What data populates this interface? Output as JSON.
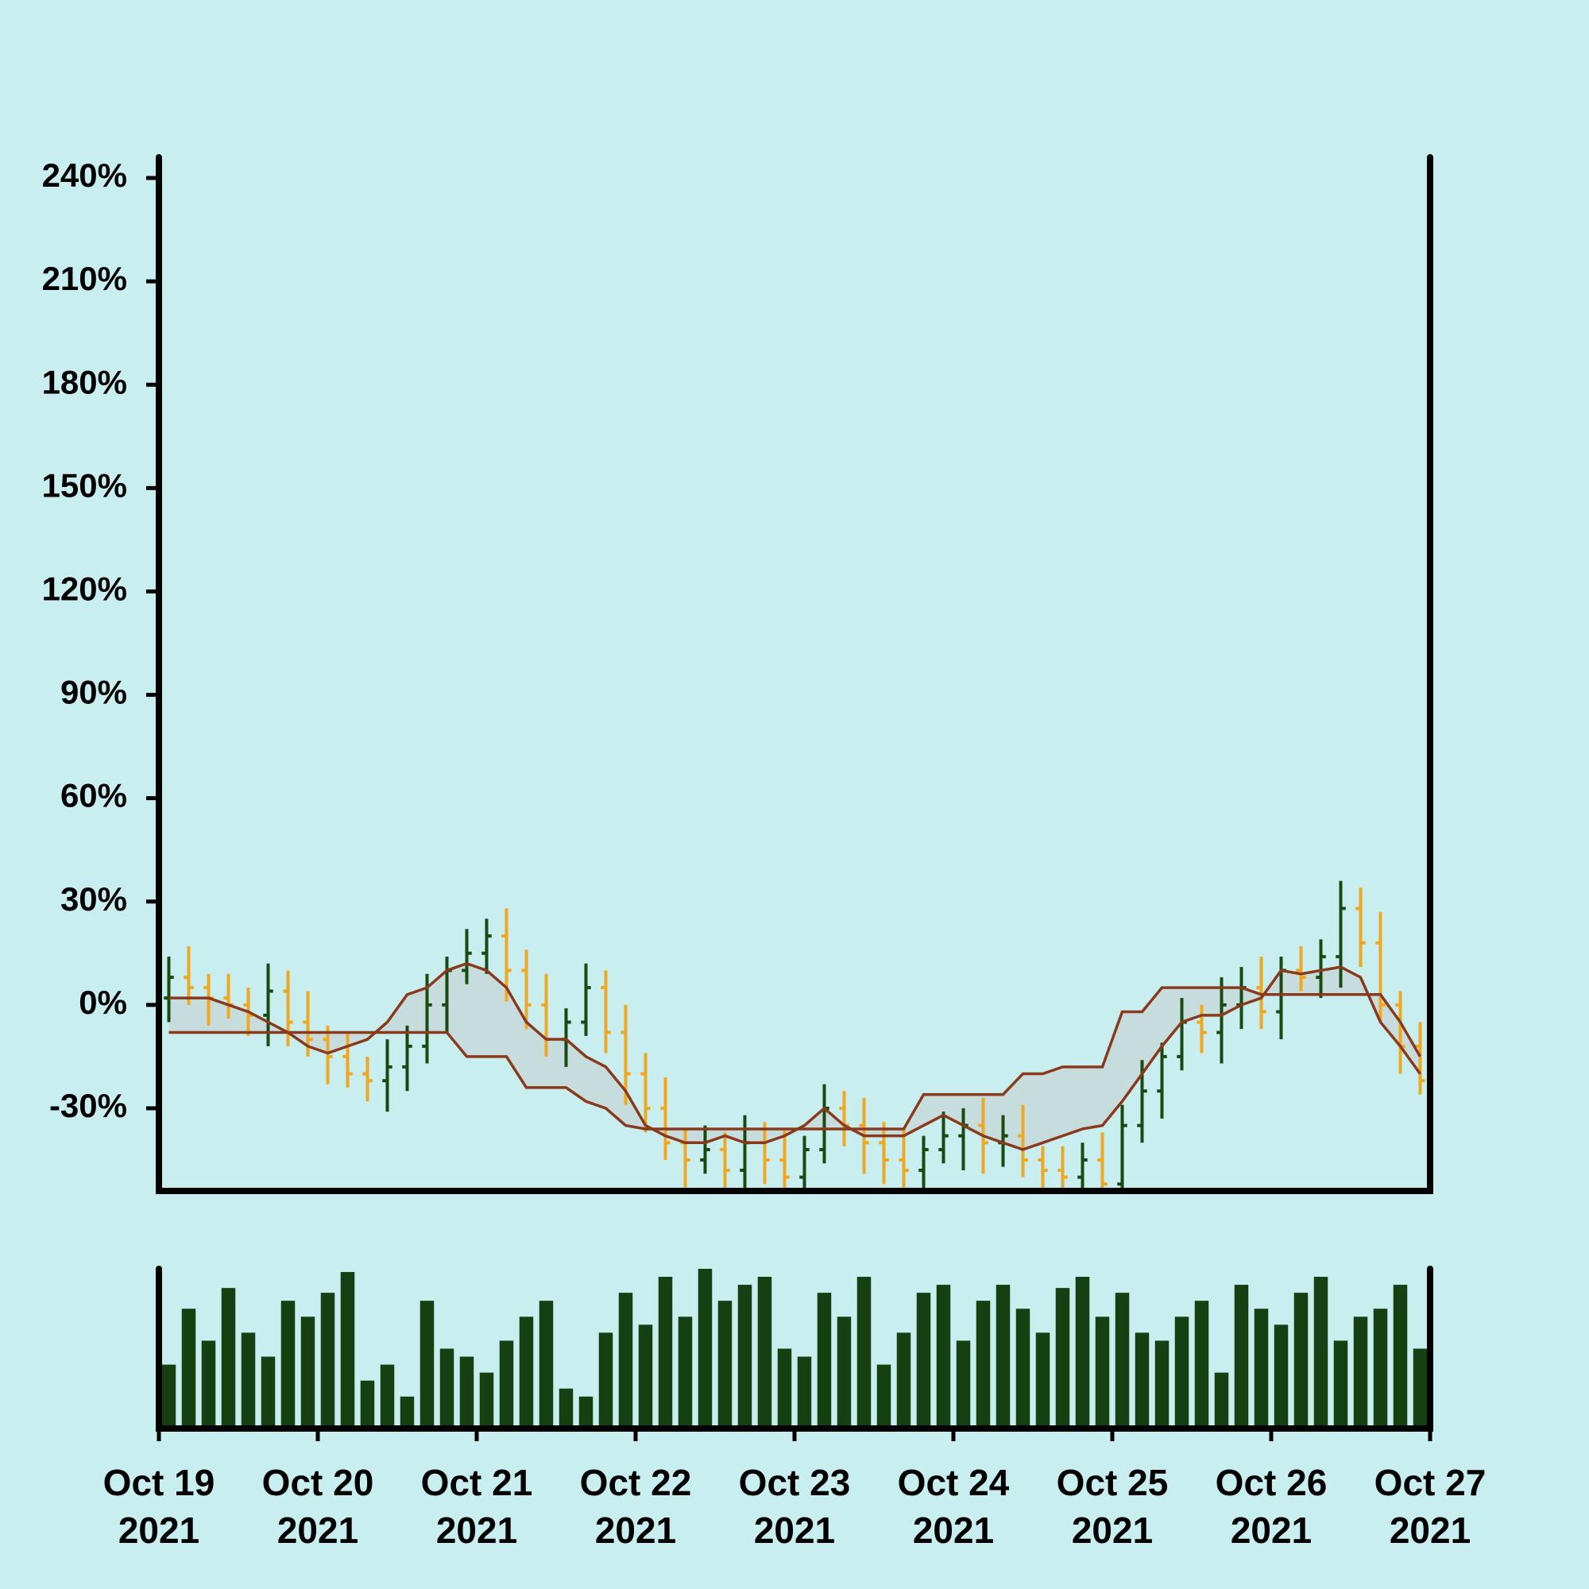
{
  "chart_data": [
    {
      "type": "ohlc",
      "open": [
        2,
        8,
        5,
        2,
        0,
        -3,
        4,
        -5,
        -10,
        -15,
        -20,
        -22,
        -18,
        -12,
        0,
        10,
        15,
        20,
        10,
        0,
        -10,
        -5,
        5,
        -8,
        -20,
        -30,
        -40,
        -45,
        -42,
        -48,
        -40,
        -45,
        -50,
        -42,
        -30,
        -35,
        -40,
        -45,
        -48,
        -42,
        -38,
        -35,
        -40,
        -38,
        -45,
        -48,
        -50,
        -45,
        -52,
        -35,
        -25,
        -15,
        -5,
        -8,
        0,
        5,
        -2,
        10,
        8,
        14,
        28,
        18,
        0,
        -12
      ],
      "high": [
        14,
        17,
        9,
        9,
        5,
        12,
        10,
        4,
        -6,
        -8,
        -15,
        -10,
        -6,
        9,
        14,
        22,
        25,
        28,
        16,
        9,
        -1,
        12,
        10,
        0,
        -14,
        -21,
        -36,
        -35,
        -37,
        -32,
        -34,
        -36,
        -38,
        -23,
        -25,
        -27,
        -34,
        -36,
        -38,
        -31,
        -30,
        -27,
        -32,
        -29,
        -41,
        -41,
        -40,
        -37,
        -29,
        -16,
        -11,
        2,
        0,
        8,
        11,
        14,
        14,
        17,
        19,
        36,
        34,
        27,
        4,
        -5
      ],
      "low": [
        -5,
        0,
        -6,
        -4,
        -9,
        -12,
        -12,
        -15,
        -23,
        -24,
        -28,
        -31,
        -25,
        -17,
        -8,
        6,
        9,
        1,
        -7,
        -15,
        -18,
        -9,
        -14,
        -29,
        -37,
        -45,
        -53,
        -49,
        -54,
        -57,
        -52,
        -55,
        -58,
        -46,
        -41,
        -49,
        -52,
        -53,
        -56,
        -46,
        -48,
        -49,
        -47,
        -50,
        -56,
        -54,
        -56,
        -61,
        -59,
        -40,
        -33,
        -19,
        -14,
        -17,
        -7,
        -7,
        -10,
        4,
        2,
        5,
        11,
        -5,
        -20,
        -26
      ],
      "close": [
        8,
        5,
        2,
        0,
        -3,
        4,
        -5,
        -10,
        -15,
        -20,
        -22,
        -18,
        -12,
        0,
        10,
        15,
        20,
        10,
        0,
        -10,
        -5,
        5,
        -8,
        -20,
        -30,
        -40,
        -45,
        -42,
        -48,
        -40,
        -45,
        -50,
        -42,
        -30,
        -35,
        -40,
        -45,
        -48,
        -42,
        -38,
        -35,
        -40,
        -38,
        -45,
        -48,
        -50,
        -45,
        -52,
        -35,
        -25,
        -15,
        -5,
        -8,
        0,
        5,
        -2,
        10,
        8,
        14,
        28,
        18,
        0,
        -12,
        -22
      ],
      "up_color": "#184a12",
      "down_color": "#f0a820",
      "lines": [
        {
          "color": "#8a3a1c",
          "values": [
            2,
            2,
            2,
            0,
            -2,
            -5,
            -8,
            -12,
            -14,
            -12,
            -10,
            -5,
            3,
            5,
            10,
            12,
            10,
            5,
            -5,
            -10,
            -10,
            -15,
            -18,
            -25,
            -35,
            -38,
            -40,
            -40,
            -38,
            -40,
            -40,
            -38,
            -35,
            -30,
            -35,
            -38,
            -38,
            -38,
            -35,
            -32,
            -35,
            -38,
            -40,
            -42,
            -40,
            -38,
            -36,
            -35,
            -28,
            -20,
            -12,
            -5,
            -3,
            -3,
            0,
            2,
            10,
            9,
            10,
            11,
            8,
            -5,
            -12,
            -20
          ]
        },
        {
          "color": "#8a3a1c",
          "values": [
            -8,
            -8,
            -8,
            -8,
            -8,
            -8,
            -8,
            -8,
            -8,
            -8,
            -8,
            -8,
            -8,
            -8,
            -8,
            -15,
            -15,
            -15,
            -24,
            -24,
            -24,
            -28,
            -30,
            -35,
            -36,
            -36,
            -36,
            -36,
            -36,
            -36,
            -36,
            -36,
            -36,
            -36,
            -36,
            -36,
            -36,
            -36,
            -26,
            -26,
            -26,
            -26,
            -26,
            -20,
            -20,
            -18,
            -18,
            -18,
            -2,
            -2,
            5,
            5,
            5,
            5,
            5,
            3,
            3,
            3,
            3,
            3,
            3,
            3,
            -5,
            -15
          ]
        }
      ],
      "cloud_color": "#c7dcdc",
      "xlim": [
        "2021-10-19",
        "2021-10-27"
      ],
      "ylim": [
        -54,
        246
      ],
      "yticks": [
        {
          "value": -30,
          "label": "-30%"
        },
        {
          "value": 0,
          "label": "0%"
        },
        {
          "value": 30,
          "label": "30%"
        },
        {
          "value": 60,
          "label": "60%"
        },
        {
          "value": 90,
          "label": "90%"
        },
        {
          "value": 120,
          "label": "120%"
        },
        {
          "value": 150,
          "label": "150%"
        },
        {
          "value": 180,
          "label": "180%"
        },
        {
          "value": 210,
          "label": "210%"
        },
        {
          "value": 240,
          "label": "240%"
        }
      ]
    },
    {
      "type": "bar",
      "values": [
        40,
        75,
        55,
        88,
        60,
        45,
        80,
        70,
        85,
        98,
        30,
        40,
        20,
        80,
        50,
        45,
        35,
        55,
        70,
        80,
        25,
        20,
        60,
        85,
        65,
        95,
        70,
        100,
        80,
        90,
        95,
        50,
        45,
        85,
        70,
        95,
        40,
        60,
        85,
        90,
        55,
        80,
        90,
        75,
        60,
        88,
        95,
        70,
        85,
        60,
        55,
        70,
        80,
        35,
        90,
        75,
        65,
        85,
        95,
        55,
        70,
        75,
        90,
        50
      ],
      "color": "#163f12",
      "ylim": [
        0,
        100
      ],
      "xlim": [
        "2021-10-19",
        "2021-10-27"
      ],
      "xticks": [
        {
          "value": "2021-10-19",
          "label": "Oct 19\n2021"
        },
        {
          "value": "2021-10-20",
          "label": "Oct 20\n2021"
        },
        {
          "value": "2021-10-21",
          "label": "Oct 21\n2021"
        },
        {
          "value": "2021-10-22",
          "label": "Oct 22\n2021"
        },
        {
          "value": "2021-10-23",
          "label": "Oct 23\n2021"
        },
        {
          "value": "2021-10-24",
          "label": "Oct 24\n2021"
        },
        {
          "value": "2021-10-25",
          "label": "Oct 25\n2021"
        },
        {
          "value": "2021-10-26",
          "label": "Oct 26\n2021"
        },
        {
          "value": "2021-10-27",
          "label": "Oct 27\n2021"
        }
      ]
    }
  ]
}
